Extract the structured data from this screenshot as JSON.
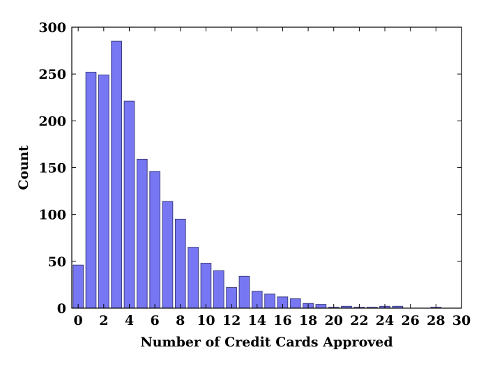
{
  "chart_data": {
    "type": "bar",
    "title": "",
    "xlabel": "Number of Credit Cards Approved",
    "ylabel": "Count",
    "x": [
      0,
      1,
      2,
      3,
      4,
      5,
      6,
      7,
      8,
      9,
      10,
      11,
      12,
      13,
      14,
      15,
      16,
      17,
      18,
      19,
      20,
      21,
      22,
      23,
      24,
      25,
      26,
      27,
      28
    ],
    "values": [
      46,
      252,
      249,
      285,
      221,
      159,
      146,
      114,
      95,
      65,
      48,
      40,
      22,
      34,
      18,
      15,
      12,
      10,
      5,
      4,
      1,
      2,
      1,
      1,
      2,
      2,
      0,
      0,
      1
    ],
    "xlim": [
      -0.5,
      30
    ],
    "ylim": [
      0,
      300
    ],
    "xticks": [
      0,
      2,
      4,
      6,
      8,
      10,
      12,
      14,
      16,
      18,
      20,
      22,
      24,
      26,
      28,
      30
    ],
    "yticks": [
      0,
      50,
      100,
      150,
      200,
      250,
      300
    ],
    "grid": false,
    "bar_color": "#7777f3",
    "bar_edge_color": "#3d3d80"
  }
}
